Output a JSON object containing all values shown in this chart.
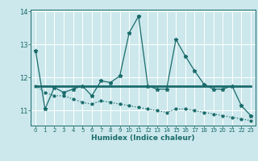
{
  "title": "",
  "xlabel": "Humidex (Indice chaleur)",
  "bg_color": "#cce8ec",
  "grid_color": "#ffffff",
  "line_color": "#1a6b6b",
  "xlim": [
    -0.5,
    23.5
  ],
  "ylim": [
    10.55,
    14.05
  ],
  "yticks": [
    11,
    12,
    13,
    14
  ],
  "ytick_labels": [
    "11",
    "12",
    "13",
    "14"
  ],
  "xticks": [
    0,
    1,
    2,
    3,
    4,
    5,
    6,
    7,
    8,
    9,
    10,
    11,
    12,
    13,
    14,
    15,
    16,
    17,
    18,
    19,
    20,
    21,
    22,
    23
  ],
  "line1_x": [
    0,
    1,
    2,
    3,
    4,
    5,
    6,
    7,
    8,
    9,
    10,
    11,
    12,
    13,
    14,
    15,
    16,
    17,
    18,
    19,
    20,
    21,
    22,
    23
  ],
  "line1_y": [
    12.8,
    11.05,
    11.7,
    11.55,
    11.65,
    11.75,
    11.45,
    11.9,
    11.85,
    12.05,
    13.35,
    13.85,
    11.75,
    11.65,
    11.65,
    13.15,
    12.65,
    12.2,
    11.8,
    11.65,
    11.65,
    11.75,
    11.15,
    10.85
  ],
  "line2_x": [
    0,
    1,
    2,
    3,
    4,
    5,
    6,
    7,
    8,
    9,
    10,
    11,
    12,
    13,
    14,
    15,
    16,
    17,
    18,
    19,
    20,
    21,
    22,
    23
  ],
  "line2_y": [
    11.75,
    11.75,
    11.75,
    11.75,
    11.75,
    11.75,
    11.75,
    11.75,
    11.75,
    11.75,
    11.75,
    11.75,
    11.75,
    11.75,
    11.75,
    11.75,
    11.75,
    11.75,
    11.75,
    11.75,
    11.75,
    11.75,
    11.75,
    11.75
  ],
  "line3_x": [
    0,
    1,
    2,
    3,
    4,
    5,
    6,
    7,
    8,
    9,
    10,
    11,
    12,
    13,
    14,
    15,
    16,
    17,
    18,
    19,
    20,
    21,
    22,
    23
  ],
  "line3_y": [
    11.75,
    11.55,
    11.45,
    11.45,
    11.35,
    11.25,
    11.2,
    11.3,
    11.25,
    11.2,
    11.15,
    11.1,
    11.05,
    11.0,
    10.95,
    11.05,
    11.05,
    11.0,
    10.95,
    10.9,
    10.85,
    10.8,
    10.75,
    10.7
  ]
}
